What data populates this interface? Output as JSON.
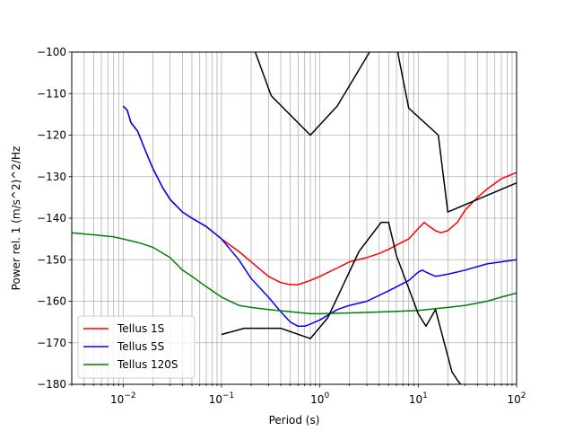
{
  "chart_data": {
    "type": "line",
    "title": "",
    "xlabel": "Period (s)",
    "ylabel": "Power rel. 1 (m/s^2)^2/Hz",
    "xscale": "log",
    "xlim": [
      0.003,
      100
    ],
    "ylim": [
      -180,
      -100
    ],
    "grid": true,
    "legend_position": "lower-left",
    "x_ticks": [
      {
        "value": 0.01,
        "base": "10",
        "exp": "−2"
      },
      {
        "value": 0.1,
        "base": "10",
        "exp": "−1"
      },
      {
        "value": 1,
        "base": "10",
        "exp": "0"
      },
      {
        "value": 10,
        "base": "10",
        "exp": "1"
      },
      {
        "value": 100,
        "base": "10",
        "exp": "2"
      }
    ],
    "y_ticks": [
      {
        "value": -100,
        "label": "−100"
      },
      {
        "value": -110,
        "label": "−110"
      },
      {
        "value": -120,
        "label": "−120"
      },
      {
        "value": -130,
        "label": "−130"
      },
      {
        "value": -140,
        "label": "−140"
      },
      {
        "value": -150,
        "label": "−150"
      },
      {
        "value": -160,
        "label": "−160"
      },
      {
        "value": -170,
        "label": "−170"
      },
      {
        "value": -180,
        "label": "−180"
      }
    ],
    "series": [
      {
        "name": "Tellus 1S",
        "color": "#ff0000",
        "in_legend": true,
        "points": [
          [
            0.01,
            -113
          ],
          [
            0.011,
            -114
          ],
          [
            0.012,
            -117
          ],
          [
            0.014,
            -119
          ],
          [
            0.017,
            -124
          ],
          [
            0.02,
            -128
          ],
          [
            0.025,
            -132.5
          ],
          [
            0.03,
            -135.5
          ],
          [
            0.04,
            -138.5
          ],
          [
            0.05,
            -140
          ],
          [
            0.07,
            -142
          ],
          [
            0.1,
            -145
          ],
          [
            0.15,
            -148
          ],
          [
            0.2,
            -150.5
          ],
          [
            0.3,
            -154
          ],
          [
            0.4,
            -155.5
          ],
          [
            0.5,
            -156
          ],
          [
            0.6,
            -156
          ],
          [
            0.8,
            -155
          ],
          [
            1,
            -154
          ],
          [
            1.5,
            -152
          ],
          [
            2,
            -150.5
          ],
          [
            3,
            -149.5
          ],
          [
            4,
            -148.5
          ],
          [
            5,
            -147.5
          ],
          [
            6,
            -146.5
          ],
          [
            8,
            -145
          ],
          [
            10,
            -142.5
          ],
          [
            11.5,
            -141
          ],
          [
            13,
            -142
          ],
          [
            15,
            -143
          ],
          [
            17,
            -143.5
          ],
          [
            20,
            -143
          ],
          [
            25,
            -141
          ],
          [
            30,
            -138
          ],
          [
            40,
            -135
          ],
          [
            50,
            -133
          ],
          [
            70,
            -130.5
          ],
          [
            100,
            -129
          ]
        ]
      },
      {
        "name": "Tellus 5S",
        "color": "#0000ff",
        "in_legend": true,
        "points": [
          [
            0.01,
            -113
          ],
          [
            0.011,
            -114
          ],
          [
            0.012,
            -117
          ],
          [
            0.014,
            -119
          ],
          [
            0.017,
            -124
          ],
          [
            0.02,
            -128
          ],
          [
            0.025,
            -132.5
          ],
          [
            0.03,
            -135.5
          ],
          [
            0.04,
            -138.5
          ],
          [
            0.05,
            -140
          ],
          [
            0.07,
            -142
          ],
          [
            0.1,
            -145
          ],
          [
            0.15,
            -150
          ],
          [
            0.2,
            -154.5
          ],
          [
            0.3,
            -159
          ],
          [
            0.4,
            -162.5
          ],
          [
            0.5,
            -165
          ],
          [
            0.6,
            -166
          ],
          [
            0.7,
            -166
          ],
          [
            0.8,
            -165.5
          ],
          [
            1,
            -164.5
          ],
          [
            1.5,
            -162
          ],
          [
            2,
            -161
          ],
          [
            3,
            -160
          ],
          [
            5,
            -157.5
          ],
          [
            8,
            -155
          ],
          [
            10,
            -153
          ],
          [
            11,
            -152.5
          ],
          [
            12,
            -153
          ],
          [
            15,
            -154
          ],
          [
            20,
            -153.5
          ],
          [
            30,
            -152.5
          ],
          [
            50,
            -151
          ],
          [
            70,
            -150.5
          ],
          [
            100,
            -150
          ]
        ]
      },
      {
        "name": "Tellus 120S",
        "color": "#008000",
        "in_legend": true,
        "points": [
          [
            0.003,
            -143.5
          ],
          [
            0.005,
            -144
          ],
          [
            0.008,
            -144.5
          ],
          [
            0.01,
            -145
          ],
          [
            0.015,
            -146
          ],
          [
            0.02,
            -147
          ],
          [
            0.03,
            -149.5
          ],
          [
            0.04,
            -152.5
          ],
          [
            0.05,
            -154
          ],
          [
            0.07,
            -156.5
          ],
          [
            0.1,
            -159
          ],
          [
            0.15,
            -161
          ],
          [
            0.2,
            -161.5
          ],
          [
            0.3,
            -162
          ],
          [
            0.5,
            -162.5
          ],
          [
            0.8,
            -163
          ],
          [
            1,
            -163
          ],
          [
            2,
            -162.8
          ],
          [
            5,
            -162.5
          ],
          [
            10,
            -162.2
          ],
          [
            20,
            -161.5
          ],
          [
            30,
            -161
          ],
          [
            50,
            -160
          ],
          [
            70,
            -159
          ],
          [
            100,
            -158
          ]
        ]
      },
      {
        "name": "",
        "color": "#000000",
        "in_legend": false,
        "points": [
          [
            0.1,
            -168
          ],
          [
            0.17,
            -166.5
          ],
          [
            0.4,
            -166.5
          ],
          [
            0.8,
            -169
          ],
          [
            1.2,
            -164
          ],
          [
            2.5,
            -148
          ],
          [
            4.2,
            -141
          ],
          [
            5,
            -141
          ],
          [
            6,
            -149
          ],
          [
            10,
            -163
          ],
          [
            12,
            -166
          ],
          [
            15,
            -162
          ],
          [
            22,
            -177
          ],
          [
            25,
            -179
          ],
          [
            27,
            -180
          ]
        ]
      },
      {
        "name": "",
        "color": "#000000",
        "in_legend": false,
        "points": [
          [
            0.2,
            -99.5
          ],
          [
            0.22,
            -100
          ],
          [
            0.32,
            -110.5
          ],
          [
            0.8,
            -120
          ],
          [
            1.5,
            -113
          ],
          [
            3.2,
            -100
          ],
          [
            3.5,
            -99.5
          ],
          [
            5.8,
            -99.5
          ],
          [
            6.2,
            -100
          ],
          [
            6.3,
            -101
          ],
          [
            8,
            -113.5
          ],
          [
            16,
            -120
          ],
          [
            20,
            -138.5
          ],
          [
            100,
            -131.5
          ]
        ]
      }
    ]
  }
}
